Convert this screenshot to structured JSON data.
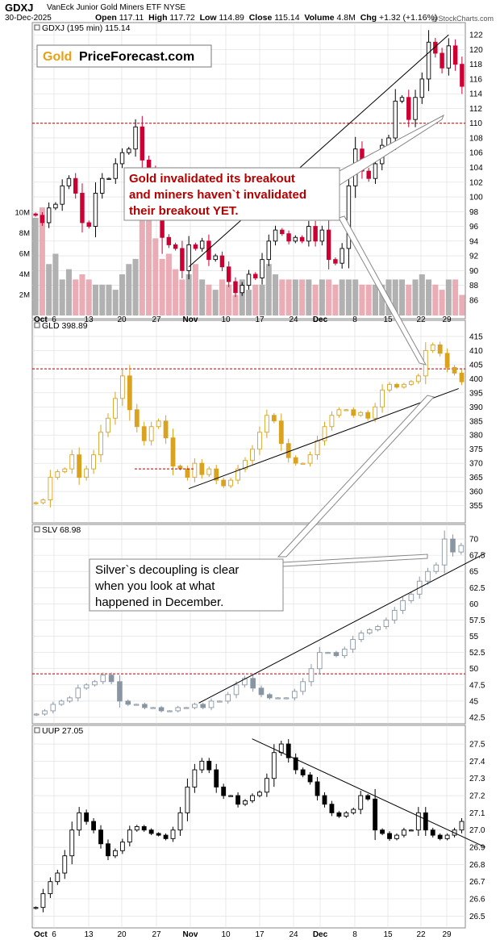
{
  "header": {
    "symbol": "GDXJ",
    "description": "VanEck Junior Gold Miners ETF  NYSE",
    "date": "30-Dec-2025",
    "open_label": "Open",
    "open": "117.11",
    "high_label": "High",
    "high": "117.72",
    "low_label": "Low",
    "low": "114.89",
    "close_label": "Close",
    "close": "115.14",
    "volume_label": "Volume",
    "volume": "4.8M",
    "chg_label": "Chg",
    "chg": "+1.32 (+1.16%)",
    "credit": "@StockCharts.com"
  },
  "logo": {
    "part1": "Gold",
    "part2": "PriceForecast.com"
  },
  "annotations": {
    "gold_box": [
      "Gold invalidated its breakout",
      "and miners haven`t invalidated",
      "their breakout YET."
    ],
    "silver_box": [
      "Silver`s decoupling is clear",
      "when you look at what",
      "happened in December."
    ]
  },
  "colors": {
    "up": "#ffffff",
    "down_gdxj": "#cc0033",
    "gold": "#d9a321",
    "silver": "#8896a3",
    "uup": "#000000",
    "vol_up": "#e8a3ad",
    "vol_down": "#a9a9a9",
    "ref_line": "#b30000",
    "annotation_text": "#b30000",
    "logo_gold": "#e6a117",
    "grid": "#dddddd"
  },
  "chart_data": [
    {
      "type": "candlestick",
      "panel": "GDXJ",
      "title": "GDXJ (195 min) 115.14",
      "ylim": [
        85,
        123
      ],
      "yticks": [
        86,
        88,
        90,
        92,
        94,
        96,
        98,
        100,
        102,
        104,
        106,
        108,
        110,
        112,
        114,
        116,
        118,
        120,
        122
      ],
      "xlabels": [
        "Oct",
        "6",
        "13",
        "20",
        "27",
        "Nov",
        "10",
        "17",
        "24",
        "Dec",
        "8",
        "15",
        "22",
        "29"
      ],
      "reference_level": 110,
      "volume_ticks": [
        "2M",
        "4M",
        "6M",
        "8M",
        "10M"
      ],
      "volume_max_millions": 12,
      "trendline": [
        [
          23.5,
          90.5
        ],
        [
          62.5,
          122
        ]
      ],
      "close": [
        97.5,
        96.5,
        98.5,
        99,
        101.5,
        102.5,
        100.5,
        96.5,
        96,
        100.5,
        102.5,
        102.5,
        104.5,
        106,
        106.5,
        109.5,
        105,
        103.5,
        101.5,
        94.5,
        93.5,
        93,
        90,
        93.5,
        93,
        94,
        91.5,
        92,
        90.5,
        88.5,
        87,
        88,
        89.5,
        89,
        91.5,
        94,
        95.5,
        95,
        94,
        94.5,
        94,
        96,
        94,
        95.5,
        91.5,
        91,
        93,
        101.5,
        106.5,
        103.5,
        102.5,
        104.5,
        107,
        108,
        113,
        113.5,
        110.5,
        113.5,
        116,
        121,
        119.5,
        117.5,
        120.5,
        118,
        115
      ],
      "volume_millions": [
        9.5,
        10.5,
        5,
        6,
        3.5,
        4.5,
        3.5,
        4,
        3.5,
        3,
        3,
        3,
        2.5,
        4,
        5,
        5.5,
        9.5,
        9.5,
        7.5,
        5.5,
        6,
        4.5,
        3.5,
        4,
        5,
        3.5,
        3,
        2.5,
        3.5,
        3,
        2,
        3.5,
        2.5,
        3,
        3,
        5,
        4,
        3.5,
        3.5,
        3.5,
        3.5,
        3.5,
        3,
        3.5,
        3.5,
        3,
        3.5,
        3.5,
        3.5,
        3,
        3,
        3,
        3,
        3.5,
        3.5,
        3.5,
        3,
        3.5,
        4,
        3.5,
        3,
        2.5,
        3.5,
        3.5,
        2
      ]
    },
    {
      "type": "candlestick",
      "panel": "GLD",
      "title": "GLD 398.89",
      "ylim": [
        350,
        419
      ],
      "yticks": [
        355,
        360,
        365,
        370,
        375,
        380,
        385,
        390,
        395,
        400,
        405,
        410,
        415
      ],
      "reference_level": 403.5,
      "trendline": [
        [
          23.5,
          361
        ],
        [
          64,
          396.5
        ]
      ],
      "close": [
        356,
        357,
        365,
        367,
        368,
        373,
        365,
        368,
        373,
        381,
        386,
        393,
        401,
        389,
        383,
        378,
        383,
        385,
        379,
        369,
        368,
        365,
        370,
        366,
        368,
        364,
        362,
        364,
        368,
        371,
        375,
        381,
        387,
        385,
        377,
        372,
        370,
        370,
        373,
        378,
        383,
        387,
        389,
        389,
        387,
        388,
        386,
        390,
        396,
        398,
        397,
        398,
        399,
        401,
        410,
        412,
        409,
        404,
        402,
        398.9
      ],
      "data_is": "approximate reading from image"
    },
    {
      "type": "candlestick",
      "panel": "SLV",
      "title": "SLV 68.98",
      "ylim": [
        42,
        71.5
      ],
      "yticks": [
        42.5,
        45,
        47.5,
        50,
        52.5,
        55,
        57.5,
        60,
        62.5,
        65,
        67.5,
        70
      ],
      "reference_level": 49.2,
      "trendline": [
        [
          25,
          44.7
        ],
        [
          68,
          67.8
        ]
      ],
      "close": [
        43,
        43.5,
        44.5,
        45,
        45.5,
        47,
        47.5,
        48,
        49,
        48,
        45,
        44.5,
        44.5,
        44,
        44,
        43.5,
        43.5,
        44,
        44,
        44.5,
        44,
        45,
        45,
        46,
        47.5,
        48.5,
        47,
        46,
        45.5,
        45.5,
        45.5,
        46.5,
        48,
        50,
        52.5,
        52.5,
        52,
        53,
        54.5,
        55.5,
        56,
        56.5,
        57.5,
        59,
        60.5,
        61.5,
        63.5,
        65,
        66,
        70,
        68,
        69
      ],
      "data_is": "approximate reading from image"
    },
    {
      "type": "candlestick",
      "panel": "UUP",
      "title": "UUP 27.05",
      "ylim": [
        26.45,
        27.58
      ],
      "yticks": [
        26.5,
        26.6,
        26.7,
        26.8,
        26.9,
        27.0,
        27.1,
        27.2,
        27.3,
        27.4,
        27.5
      ],
      "trendline": [
        [
          33,
          27.53
        ],
        [
          68,
          26.9
        ]
      ],
      "close": [
        26.55,
        26.63,
        26.7,
        26.75,
        26.85,
        27.0,
        27.1,
        27.05,
        27.0,
        26.92,
        26.85,
        26.88,
        26.93,
        27.0,
        27.02,
        27.0,
        26.98,
        26.97,
        26.95,
        27.0,
        27.1,
        27.25,
        27.35,
        27.4,
        27.35,
        27.25,
        27.2,
        27.2,
        27.15,
        27.17,
        27.2,
        27.22,
        27.3,
        27.45,
        27.5,
        27.42,
        27.35,
        27.32,
        27.28,
        27.2,
        27.15,
        27.1,
        27.08,
        27.1,
        27.12,
        27.2,
        27.18,
        27.0,
        26.98,
        26.95,
        26.97,
        27.0,
        27.0,
        27.1,
        27.0,
        26.97,
        26.95,
        26.97,
        27.0,
        27.05
      ],
      "data_is": "approximate reading from image"
    }
  ]
}
